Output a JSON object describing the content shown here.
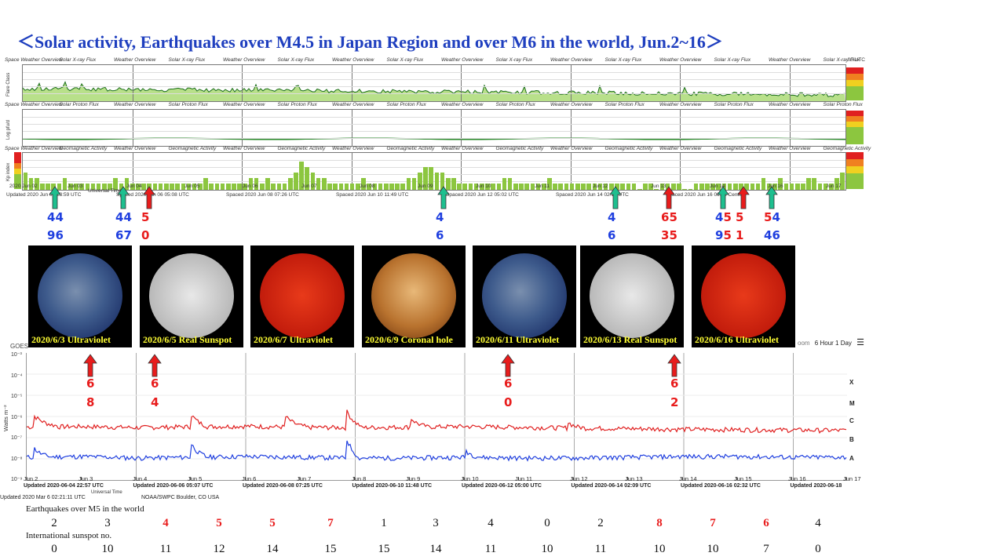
{
  "title": "＜Solar activity, Earthquakes over M4.5 in Japan Region and over M6 in the world,   Jun.2~16＞",
  "panels": {
    "header_labels": [
      "Space Weather Overview",
      "Solar X-ray Flux",
      "Weather Overview",
      "Solar X-ray Flux",
      "Weather Overview",
      "Solar X-ray Flux",
      "Weather Overview",
      "Solar X-ray Flux",
      "Weather Overview",
      "Solar X-ray Flux",
      "Weather Overview",
      "Solar X-ray Flux",
      "Weather Overview",
      "Solar X-ray Flux",
      "Weather Overview",
      "Solar X-ray Flux"
    ],
    "header_utc": "00 UTC",
    "xray_ylabel": "Flare Class",
    "proton_header": "Solar Proton Flux",
    "proton_ylabel": "Log pfu/d",
    "geo_header": "Geomagnetic Activity",
    "geo_ylabel": "Kp index",
    "kp_xticks": [
      "2020 Jun 02",
      "Jun 03",
      "Jun 04",
      "Jun 05",
      "Jun 06",
      "Jun 07",
      "Jun 08",
      "Jun 09",
      "Jun 10",
      "Jun 11",
      "Jun 12",
      "Jun 13",
      "Jun 14",
      "Jun 16",
      "Jun 17"
    ],
    "kp_universal": "Universal Time",
    "kp_updated": [
      "Updated 2020 Jun 04 23:59 UTC",
      "Spaced 2020 Jun 06 05:08 UTC",
      "Spaced 2020 Jun 08 07:26 UTC",
      "Spaced 2020 Jun 10 11:49 UTC",
      "Spaced 2020 Jun 12 05:02 UTC",
      "Spaced 2020 Jun 14 02:10 UTC",
      "Spaced 2020 Jun 16 06:05 Center"
    ]
  },
  "japan_quakes": [
    {
      "x": 70,
      "top": "44",
      "bottom": "96",
      "top_color": "blue",
      "bottom_color": "blue"
    },
    {
      "x": 157,
      "top": "44",
      "bottom": "67",
      "top_color": "blue",
      "bottom_color": "blue"
    },
    {
      "x": 190,
      "top": "5",
      "bottom": "0",
      "top_color": "red",
      "bottom_color": "red"
    },
    {
      "x": 565,
      "top": "4",
      "bottom": "6",
      "top_color": "blue",
      "bottom_color": "blue"
    },
    {
      "x": 784,
      "top": "4",
      "bottom": "6",
      "top_color": "blue",
      "bottom_color": "blue"
    },
    {
      "x": 852,
      "top": "65",
      "bottom": "35",
      "top_color": "red",
      "bottom_color": "red"
    },
    {
      "x": 921,
      "top": "45",
      "bottom": "95",
      "top_color": "mixed",
      "bottom_color": "mixed"
    },
    {
      "x": 947,
      "top": "5",
      "bottom": "1",
      "top_color": "red",
      "bottom_color": "red"
    },
    {
      "x": 983,
      "top": "54",
      "bottom": "46",
      "top_color": "mixed",
      "bottom_color": "mixed"
    }
  ],
  "sun_images": [
    {
      "caption": "2020/6/3 Ultraviolet",
      "style": "uv"
    },
    {
      "caption": "2020/6/5 Real Sunspot",
      "style": "white"
    },
    {
      "caption": "2020/6/7 Ultraviolet",
      "style": "red"
    },
    {
      "caption": "2020/6/9 Coronal hole",
      "style": "orange"
    },
    {
      "caption": "2020/6/11 Ultraviolet",
      "style": "uv"
    },
    {
      "caption": "2020/6/13 Real Sunspot",
      "style": "white"
    },
    {
      "caption": "2020/6/16 Ultraviolet",
      "style": "red"
    }
  ],
  "goes": {
    "title": "GOES",
    "zoom_label": "oom",
    "zoom_options": "6 Hour  1 Day",
    "ylabel": "Watts m⁻²",
    "yticks": [
      "10⁻³",
      "10⁻⁴",
      "10⁻⁵",
      "10⁻⁶",
      "10⁻⁷",
      "10⁻⁸",
      "10⁻⁹"
    ],
    "classes": [
      "X",
      "M",
      "C",
      "B",
      "A"
    ],
    "xticks": [
      "Jun 2",
      "Jun 3",
      "Jun 4",
      "Jun 5",
      "Jun 6",
      "Jun 7",
      "Jun 8",
      "Jun 9",
      "Jun 10",
      "Jun 11",
      "Jun 12",
      "Jun 13",
      "Jun 14",
      "Jun 15",
      "Jun 16",
      "Jun 17"
    ],
    "updated": [
      "Updated 2020-06-04 22:57 UTC",
      "Updated 2020-06-06 05:07 UTC",
      "Updated 2020-06-08 07:25 UTC",
      "Updated 2020-06-10 11:48 UTC",
      "Updated 2020-06-12 05:00 UTC",
      "Updated 2020-06-14 02:09 UTC",
      "Updated 2020-06-16 02:32 UTC",
      "Updated 2020-06-18"
    ],
    "credit_left": "Updated 2020 Mar  6 02:21:11 UTC",
    "credit_mid": "NOAA/SWPC Boulder, CO USA",
    "universal": "Universal Time",
    "world_quakes": [
      {
        "x": 115,
        "top": "6",
        "bottom": "8"
      },
      {
        "x": 197,
        "top": "6",
        "bottom": "4"
      },
      {
        "x": 647,
        "top": "6",
        "bottom": "0"
      },
      {
        "x": 859,
        "top": "6",
        "bottom": "2"
      }
    ]
  },
  "chart_data": {
    "type": "table",
    "rows": [
      {
        "name": "Earthquakes over M5 in the world",
        "values": [
          2,
          3,
          4,
          5,
          5,
          7,
          1,
          3,
          4,
          0,
          2,
          8,
          7,
          6,
          4
        ],
        "highlight": [
          false,
          false,
          true,
          true,
          true,
          true,
          false,
          false,
          false,
          false,
          false,
          true,
          true,
          true,
          false
        ]
      },
      {
        "name": "International sunspot no.",
        "values": [
          0,
          10,
          11,
          12,
          14,
          15,
          15,
          14,
          11,
          10,
          11,
          10,
          10,
          7,
          0
        ]
      }
    ],
    "xray_series": {
      "long": [
        3.2e-07,
        3.4e-07,
        3e-07,
        3.3e-07,
        3.5e-07,
        3.1e-07,
        3e-07,
        3.2e-07,
        3.4e-07,
        3.1e-07,
        2.9e-07,
        2.7e-07,
        2.5e-07,
        2.4e-07,
        2.3e-07,
        2.2e-07
      ],
      "short": [
        1.2e-08,
        1.3e-08,
        1.1e-08,
        1.2e-08,
        1.3e-08,
        1.2e-08,
        1.1e-08,
        1.1e-08,
        1.2e-08,
        1.1e-08,
        1.1e-08,
        1.2e-08,
        1.3e-08,
        1.3e-08,
        1.2e-08,
        1.2e-08
      ]
    }
  }
}
